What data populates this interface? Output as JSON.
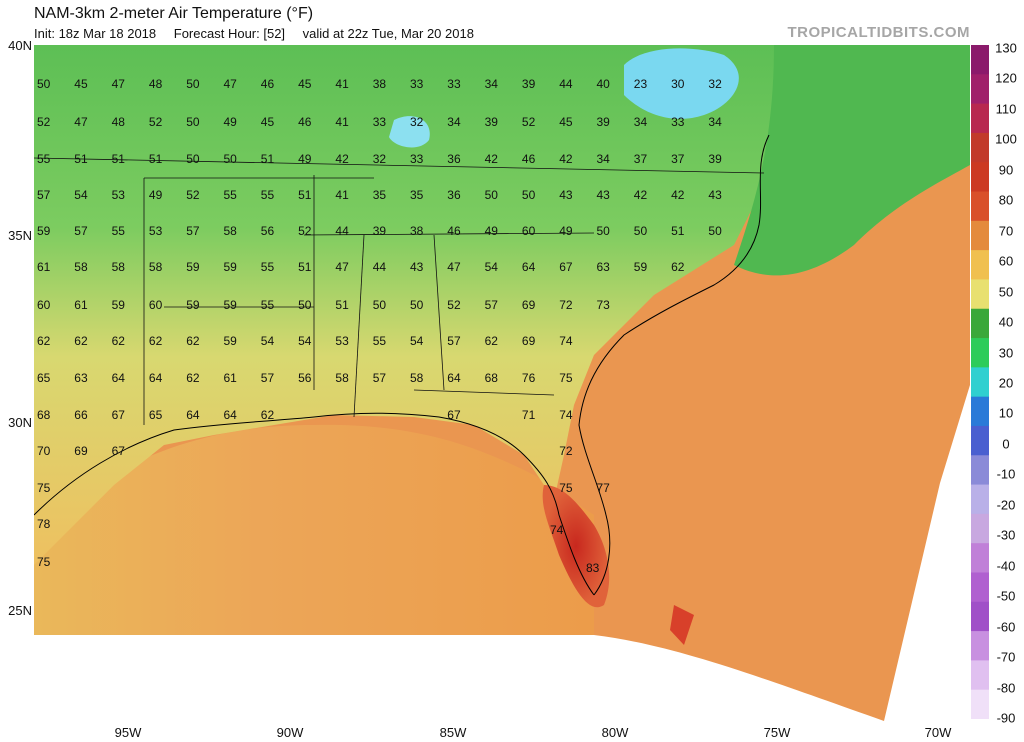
{
  "header": {
    "title": "NAM-3km 2-meter Air Temperature (°F)",
    "init": "Init: 18z Mar 18 2018",
    "forecast_hour": "Forecast Hour: [52]",
    "valid": "valid at 22z Tue, Mar 20 2018",
    "credit": "TROPICALTIDBITS.COM"
  },
  "axes": {
    "lat_labels": [
      "40N",
      "35N",
      "30N",
      "25N"
    ],
    "lon_labels": [
      "95W",
      "90W",
      "85W",
      "80W",
      "75W",
      "70W"
    ]
  },
  "colorbar": {
    "labels": [
      "130",
      "120",
      "110",
      "100",
      "90",
      "80",
      "70",
      "60",
      "50",
      "40",
      "30",
      "20",
      "10",
      "0",
      "-10",
      "-20",
      "-30",
      "-40",
      "-50",
      "-60",
      "-70",
      "-80",
      "-90"
    ],
    "colors": [
      "#8b1a6b",
      "#a0206a",
      "#b8284f",
      "#c23a2a",
      "#cc3a22",
      "#d9502a",
      "#e48a3c",
      "#f0c050",
      "#e8e070",
      "#3aa83a",
      "#2dcc5a",
      "#30d0d0",
      "#2a7ad8",
      "#4a5fd0",
      "#8a8ad8",
      "#b9b0e8",
      "#c8a8e0",
      "#c080d8",
      "#b060d0",
      "#a050c8",
      "#c890e0",
      "#e0c0f0",
      "#f0e0f8"
    ]
  },
  "station_values": [
    [
      "50",
      "45",
      "47",
      "48",
      "50",
      "47",
      "46",
      "45",
      "41",
      "38",
      "33",
      "33",
      "34",
      "39",
      "44",
      "40",
      "23",
      "30",
      "32"
    ],
    [
      "52",
      "47",
      "48",
      "52",
      "50",
      "49",
      "45",
      "46",
      "41",
      "33",
      "32",
      "34",
      "39",
      "52",
      "45",
      "39",
      "34",
      "33",
      "34"
    ],
    [
      "55",
      "51",
      "51",
      "51",
      "50",
      "50",
      "51",
      "49",
      "42",
      "32",
      "33",
      "36",
      "42",
      "46",
      "42",
      "34",
      "37",
      "37",
      "39"
    ],
    [
      "57",
      "54",
      "53",
      "49",
      "52",
      "55",
      "55",
      "51",
      "41",
      "35",
      "35",
      "36",
      "50",
      "50",
      "43",
      "43",
      "42",
      "42",
      "43"
    ],
    [
      "59",
      "57",
      "55",
      "53",
      "57",
      "58",
      "56",
      "52",
      "44",
      "39",
      "38",
      "46",
      "49",
      "60",
      "49",
      "50",
      "50",
      "51",
      "50"
    ],
    [
      "61",
      "58",
      "58",
      "58",
      "59",
      "59",
      "55",
      "51",
      "47",
      "44",
      "43",
      "47",
      "54",
      "64",
      "67",
      "63",
      "59",
      "62"
    ],
    [
      "60",
      "61",
      "59",
      "60",
      "59",
      "59",
      "55",
      "50",
      "51",
      "50",
      "50",
      "52",
      "57",
      "69",
      "72",
      "73"
    ],
    [
      "62",
      "62",
      "62",
      "62",
      "62",
      "59",
      "54",
      "54",
      "53",
      "55",
      "54",
      "57",
      "62",
      "69",
      "74"
    ],
    [
      "65",
      "63",
      "64",
      "64",
      "62",
      "61",
      "57",
      "56",
      "58",
      "57",
      "58",
      "64",
      "68",
      "76",
      "75"
    ],
    [
      "68",
      "66",
      "67",
      "65",
      "64",
      "64",
      "62",
      "67",
      "71",
      "74"
    ],
    [
      "70",
      "69",
      "67",
      "72"
    ],
    [
      "75",
      "75",
      "77"
    ],
    [
      "78",
      "74"
    ],
    [
      "75",
      "83"
    ]
  ]
}
